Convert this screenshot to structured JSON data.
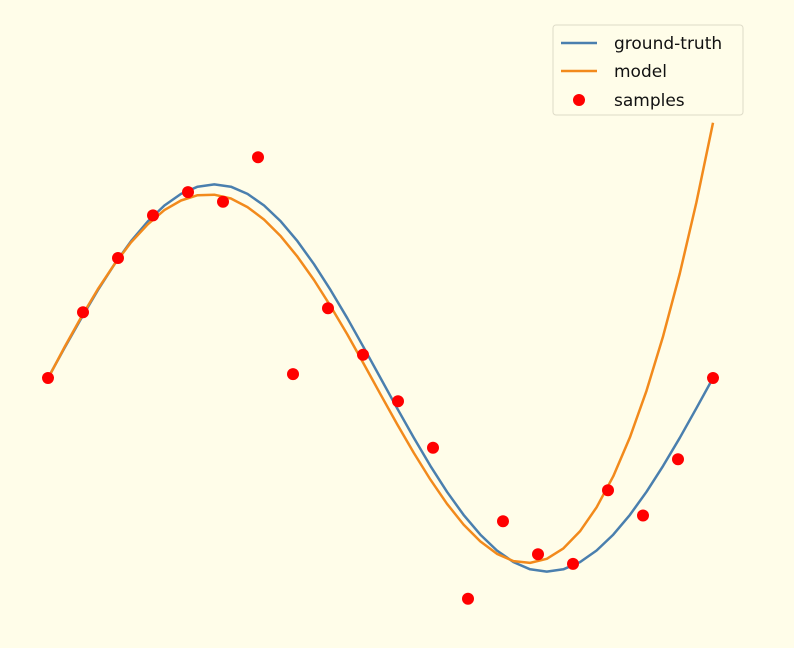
{
  "colors": {
    "background": "#fffde9",
    "ground_truth": "#4a7fae",
    "model": "#f28a1c",
    "samples": "#ff0000"
  },
  "legend": {
    "placement": "top-right",
    "entries": [
      "ground-truth",
      "model",
      "samples"
    ]
  },
  "chart_data": {
    "type": "line",
    "title": "",
    "xlabel": "",
    "ylabel": "",
    "axes_visible": false,
    "grid": false,
    "xlim": [
      0.0,
      1.0
    ],
    "ylim": [
      -1.25,
      1.25
    ],
    "series": [
      {
        "name": "ground-truth",
        "kind": "line",
        "x": [
          0.0,
          0.025,
          0.05,
          0.075,
          0.1,
          0.125,
          0.15,
          0.175,
          0.2,
          0.225,
          0.25,
          0.275,
          0.3,
          0.325,
          0.35,
          0.375,
          0.4,
          0.425,
          0.45,
          0.475,
          0.5,
          0.525,
          0.55,
          0.575,
          0.6,
          0.625,
          0.65,
          0.675,
          0.7,
          0.725,
          0.75,
          0.775,
          0.8,
          0.825,
          0.85,
          0.875,
          0.9,
          0.925,
          0.95,
          0.975,
          1.0
        ],
        "y": [
          0.0,
          0.156,
          0.309,
          0.454,
          0.588,
          0.707,
          0.809,
          0.891,
          0.951,
          0.988,
          1.0,
          0.988,
          0.951,
          0.891,
          0.809,
          0.707,
          0.588,
          0.454,
          0.309,
          0.156,
          0.0,
          -0.156,
          -0.309,
          -0.454,
          -0.588,
          -0.707,
          -0.809,
          -0.891,
          -0.951,
          -0.988,
          -1.0,
          -0.988,
          -0.951,
          -0.891,
          -0.809,
          -0.707,
          -0.588,
          -0.454,
          -0.309,
          -0.156,
          0.0
        ]
      },
      {
        "name": "model",
        "kind": "line",
        "x": [
          0.0,
          0.025,
          0.05,
          0.075,
          0.1,
          0.125,
          0.15,
          0.175,
          0.2,
          0.225,
          0.25,
          0.275,
          0.3,
          0.325,
          0.35,
          0.375,
          0.4,
          0.425,
          0.45,
          0.475,
          0.5,
          0.525,
          0.55,
          0.575,
          0.6,
          0.625,
          0.65,
          0.675,
          0.7,
          0.725,
          0.75,
          0.775,
          0.8,
          0.825,
          0.85,
          0.875,
          0.9,
          0.925,
          0.95,
          0.975,
          1.0
        ],
        "y": [
          -0.002,
          0.16,
          0.315,
          0.459,
          0.588,
          0.701,
          0.794,
          0.867,
          0.917,
          0.944,
          0.947,
          0.927,
          0.883,
          0.818,
          0.732,
          0.627,
          0.506,
          0.371,
          0.225,
          0.072,
          -0.084,
          -0.238,
          -0.387,
          -0.525,
          -0.65,
          -0.757,
          -0.844,
          -0.908,
          -0.946,
          -0.955,
          -0.934,
          -0.88,
          -0.792,
          -0.668,
          -0.507,
          -0.307,
          -0.066,
          0.216,
          0.54,
          0.907,
          1.318
        ]
      },
      {
        "name": "samples",
        "kind": "scatter",
        "x": [
          0.0,
          0.0526,
          0.1053,
          0.1579,
          0.2105,
          0.2632,
          0.3158,
          0.3684,
          0.4211,
          0.4737,
          0.5263,
          0.5789,
          0.6316,
          0.6842,
          0.7368,
          0.7895,
          0.8421,
          0.8947,
          0.9474,
          1.0
        ],
        "y": [
          0.0,
          0.34,
          0.62,
          0.84,
          0.96,
          0.91,
          1.14,
          0.02,
          0.36,
          0.12,
          -0.12,
          -0.36,
          -1.14,
          -0.74,
          -0.91,
          -0.96,
          -0.58,
          -0.71,
          -0.42,
          0.0
        ]
      }
    ]
  }
}
